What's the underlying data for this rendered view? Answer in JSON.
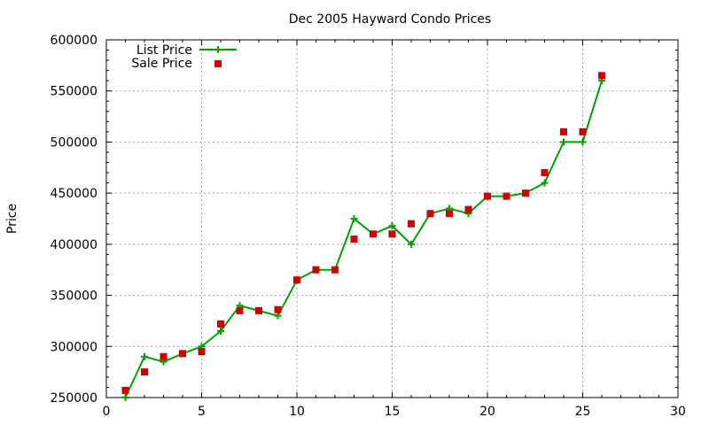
{
  "chart_data": {
    "type": "line",
    "title": "Dec 2005 Hayward Condo Prices",
    "xlabel": "",
    "ylabel": "Price",
    "xlim": [
      0,
      30
    ],
    "ylim": [
      250000,
      600000
    ],
    "xticks": [
      0,
      5,
      10,
      15,
      20,
      25,
      30
    ],
    "yticks": [
      250000,
      300000,
      350000,
      400000,
      450000,
      500000,
      550000,
      600000
    ],
    "grid": true,
    "legend_position": "top-left",
    "series": [
      {
        "name": "List Price",
        "style": "line-with-plus-markers",
        "color": "#00a000",
        "x": [
          1,
          2,
          3,
          4,
          5,
          6,
          7,
          8,
          9,
          10,
          11,
          12,
          13,
          14,
          15,
          16,
          17,
          18,
          19,
          20,
          21,
          22,
          23,
          24,
          25,
          26
        ],
        "y": [
          250000,
          290000,
          285000,
          293000,
          300000,
          315000,
          340000,
          335000,
          330000,
          365000,
          375000,
          375000,
          425000,
          410000,
          418000,
          400000,
          430000,
          435000,
          430000,
          447000,
          447000,
          450000,
          460000,
          500000,
          500000,
          560000
        ]
      },
      {
        "name": "Sale Price",
        "style": "square-markers",
        "color": "#cc0000",
        "x": [
          1,
          2,
          3,
          4,
          5,
          6,
          7,
          8,
          9,
          10,
          11,
          12,
          13,
          14,
          15,
          16,
          17,
          18,
          19,
          20,
          21,
          22,
          23,
          24,
          25,
          26
        ],
        "y": [
          257000,
          275000,
          290000,
          293000,
          295000,
          322000,
          335000,
          335000,
          336000,
          365000,
          375000,
          375000,
          405000,
          410000,
          410000,
          420000,
          430000,
          430000,
          434000,
          447000,
          447000,
          450000,
          470000,
          510000,
          510000,
          565000
        ]
      }
    ]
  }
}
